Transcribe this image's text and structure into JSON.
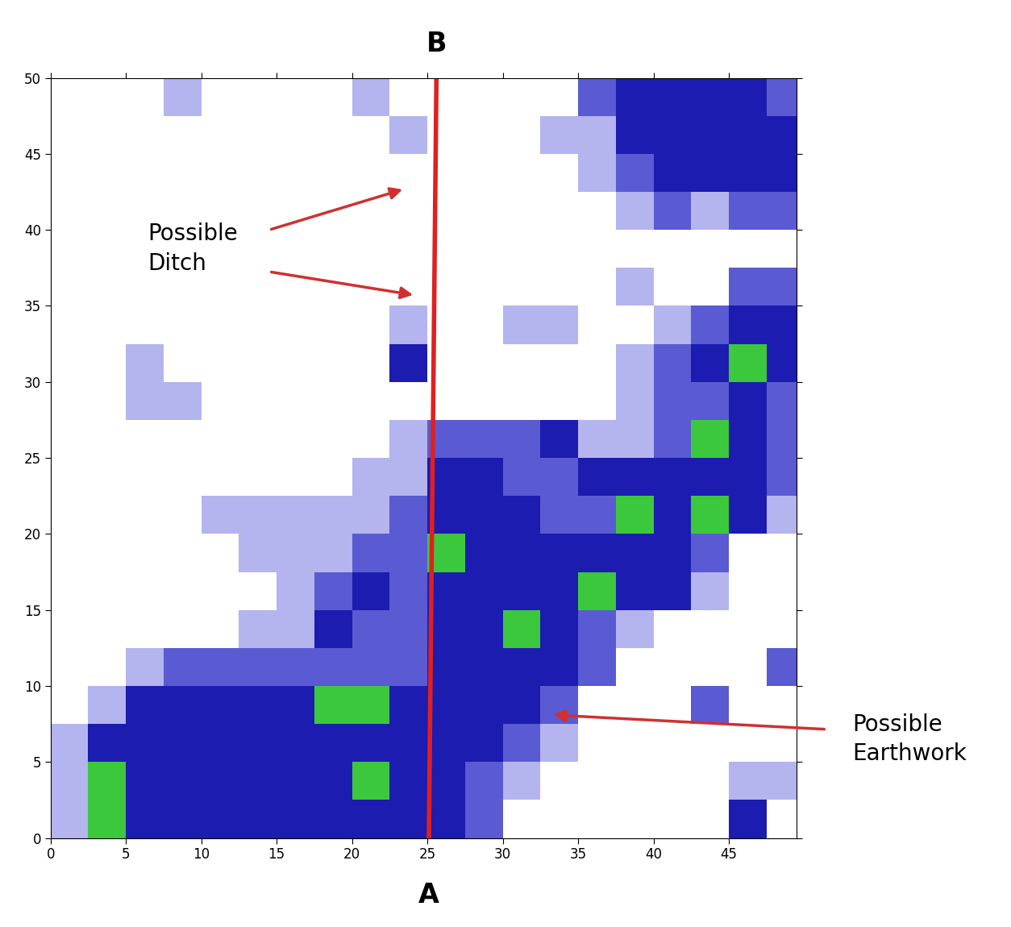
{
  "chart_data": {
    "type": "heatmap",
    "x_edges": [
      0,
      2.5,
      5,
      7.5,
      10,
      12.5,
      15,
      17.5,
      20,
      22.5,
      25,
      27.5,
      30,
      32.5,
      35,
      37.5,
      40,
      42.5,
      45,
      47.5,
      50
    ],
    "y_edges": [
      0,
      2.5,
      5,
      7.5,
      10,
      12.5,
      15,
      17.5,
      20,
      22.5,
      25,
      27.5,
      30,
      32.5,
      35,
      37.5,
      40,
      42.5,
      45,
      47.5,
      50
    ],
    "cells": [
      [
        1,
        4,
        3,
        3,
        3,
        3,
        3,
        3,
        3,
        3,
        3,
        2,
        0,
        0,
        0,
        0,
        0,
        0,
        3,
        0
      ],
      [
        1,
        4,
        3,
        3,
        3,
        3,
        3,
        3,
        4,
        3,
        3,
        2,
        1,
        0,
        0,
        0,
        0,
        0,
        1,
        1
      ],
      [
        1,
        3,
        3,
        3,
        3,
        3,
        3,
        3,
        3,
        3,
        3,
        3,
        2,
        1,
        0,
        0,
        0,
        0,
        0,
        0
      ],
      [
        0,
        1,
        3,
        3,
        3,
        3,
        3,
        4,
        4,
        3,
        3,
        3,
        3,
        2,
        0,
        0,
        0,
        2,
        0,
        0
      ],
      [
        0,
        0,
        1,
        2,
        2,
        2,
        2,
        2,
        2,
        2,
        3,
        3,
        3,
        3,
        2,
        0,
        0,
        0,
        0,
        2
      ],
      [
        0,
        0,
        0,
        0,
        0,
        1,
        1,
        3,
        2,
        2,
        3,
        3,
        4,
        3,
        2,
        1,
        0,
        0,
        0,
        0
      ],
      [
        0,
        0,
        0,
        0,
        0,
        0,
        1,
        2,
        3,
        2,
        3,
        3,
        3,
        3,
        4,
        3,
        3,
        1,
        0,
        0
      ],
      [
        0,
        0,
        0,
        0,
        0,
        1,
        1,
        1,
        2,
        2,
        4,
        3,
        3,
        3,
        3,
        3,
        3,
        2,
        0,
        0
      ],
      [
        0,
        0,
        0,
        0,
        1,
        1,
        1,
        1,
        1,
        2,
        3,
        3,
        3,
        2,
        2,
        4,
        3,
        4,
        3,
        1
      ],
      [
        0,
        0,
        0,
        0,
        0,
        0,
        0,
        0,
        1,
        1,
        3,
        3,
        2,
        2,
        3,
        3,
        3,
        3,
        3,
        2
      ],
      [
        0,
        0,
        0,
        0,
        0,
        0,
        0,
        0,
        0,
        1,
        2,
        2,
        2,
        3,
        1,
        1,
        2,
        4,
        3,
        2
      ],
      [
        0,
        0,
        1,
        1,
        0,
        0,
        0,
        0,
        0,
        0,
        0,
        0,
        0,
        0,
        0,
        1,
        2,
        2,
        3,
        2
      ],
      [
        0,
        0,
        1,
        0,
        0,
        0,
        0,
        0,
        0,
        3,
        0,
        0,
        0,
        0,
        0,
        1,
        2,
        3,
        4,
        3
      ],
      [
        0,
        0,
        0,
        0,
        0,
        0,
        0,
        0,
        0,
        1,
        0,
        0,
        1,
        1,
        0,
        0,
        1,
        2,
        3,
        3
      ],
      [
        0,
        0,
        0,
        0,
        0,
        0,
        0,
        0,
        0,
        0,
        0,
        0,
        0,
        0,
        0,
        1,
        0,
        0,
        2,
        2
      ],
      [
        0,
        0,
        0,
        0,
        0,
        0,
        0,
        0,
        0,
        0,
        0,
        0,
        0,
        0,
        0,
        0,
        0,
        0,
        0,
        0
      ],
      [
        0,
        0,
        0,
        0,
        0,
        0,
        0,
        0,
        0,
        0,
        0,
        0,
        0,
        0,
        0,
        1,
        2,
        1,
        2,
        2
      ],
      [
        0,
        0,
        0,
        0,
        0,
        0,
        0,
        0,
        0,
        0,
        0,
        0,
        0,
        0,
        1,
        2,
        3,
        3,
        3,
        3
      ],
      [
        0,
        0,
        0,
        0,
        0,
        0,
        0,
        0,
        0,
        1,
        0,
        0,
        0,
        1,
        1,
        3,
        3,
        3,
        3,
        3
      ],
      [
        0,
        0,
        0,
        1,
        0,
        0,
        0,
        0,
        1,
        0,
        0,
        0,
        0,
        0,
        2,
        3,
        3,
        3,
        3,
        2
      ]
    ],
    "colors": [
      "#ffffff",
      "#b4b4ee",
      "#5a5ad2",
      "#1c1cb0",
      "#3cc83c"
    ],
    "xlim": [
      0,
      49.5
    ],
    "ylim": [
      0,
      50
    ],
    "xticks": [
      0,
      5,
      10,
      15,
      20,
      25,
      30,
      35,
      40,
      45
    ],
    "yticks": [
      0,
      5,
      10,
      15,
      20,
      25,
      30,
      35,
      40,
      45,
      50
    ],
    "profile": {
      "x": [
        25.1,
        25.6
      ],
      "y": [
        0,
        50
      ],
      "color": "#e02020",
      "start_label": "A",
      "end_label": "B"
    },
    "annotations": [
      {
        "text": "Possible\nDitch",
        "targets": [
          [
            23.5,
            42.7
          ],
          [
            24.2,
            35.7
          ]
        ]
      },
      {
        "text": "Possible\nEarthwork",
        "targets": [
          [
            33.2,
            8.1
          ]
        ]
      }
    ]
  }
}
